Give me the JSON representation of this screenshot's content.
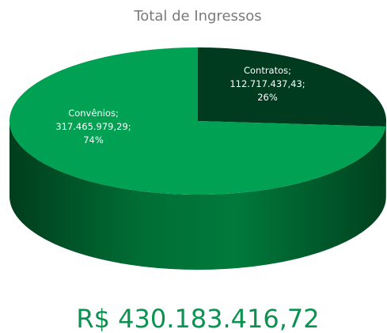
{
  "chart_data": {
    "type": "pie3d",
    "title": "Total de Ingressos",
    "categories": [
      "Convênios",
      "Contratos"
    ],
    "values": [
      317465979.29,
      112717437.43
    ],
    "value_labels": [
      "317.465.979,29",
      "112.717.437,43"
    ],
    "percent_labels": [
      "74%",
      "26%"
    ],
    "label_separator": ";",
    "colors": [
      "#00a152",
      "#003b1f"
    ],
    "total": {
      "value": 430183416.72,
      "label": "R$ 430.183.416,72"
    }
  }
}
